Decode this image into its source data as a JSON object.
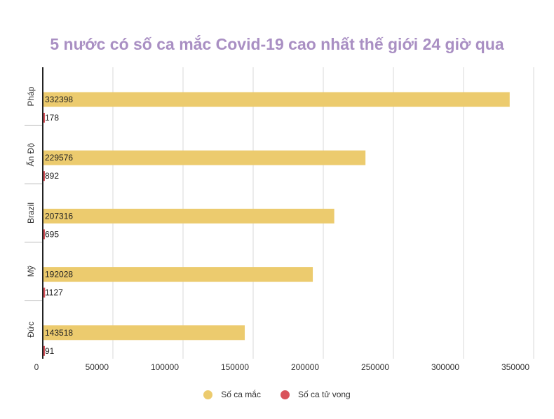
{
  "chart_data": {
    "type": "bar",
    "orientation": "horizontal",
    "title": "5 nước có số ca mắc Covid-19 cao nhất thế giới 24 giờ qua",
    "categories": [
      "Pháp",
      "Ấn Độ",
      "Brazil",
      "Mỹ",
      "Đức"
    ],
    "series": [
      {
        "name": "Số ca mắc",
        "color": "#eccb6e",
        "values": [
          332398,
          229576,
          207316,
          192028,
          143518
        ]
      },
      {
        "name": "Số ca tử vong",
        "color": "#d9525a",
        "values": [
          178,
          892,
          695,
          1127,
          91
        ]
      }
    ],
    "xlim": [
      0,
      350000
    ],
    "xticks": [
      0,
      50000,
      100000,
      150000,
      200000,
      250000,
      300000,
      350000
    ],
    "xtick_labels": [
      "0",
      "50000",
      "100000",
      "150000",
      "200000",
      "250000",
      "300000",
      "350000"
    ],
    "grid": true,
    "legend": "bottom-center"
  }
}
